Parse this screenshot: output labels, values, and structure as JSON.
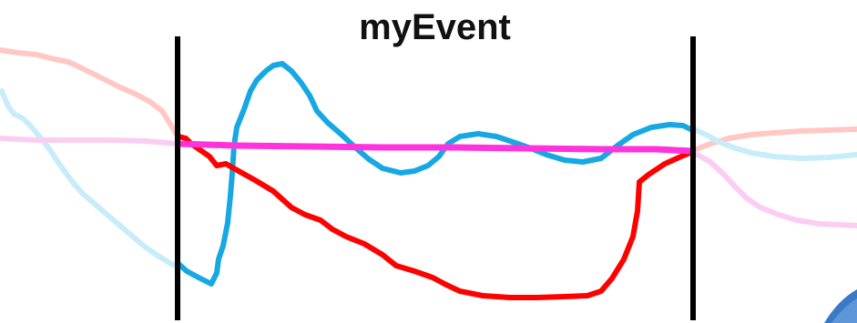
{
  "title": "myEvent",
  "colors": {
    "boundary": "#000000",
    "red_trace": "#ff0000",
    "red_trace_faded": "#ffc8c4",
    "blue_trace": "#17a8e3",
    "blue_trace_faded": "#c8ecfa",
    "magenta_trace": "#ff33dd",
    "magenta_trace_faded": "#fbcdf3",
    "corner_accent": "#3a78c8"
  }
}
